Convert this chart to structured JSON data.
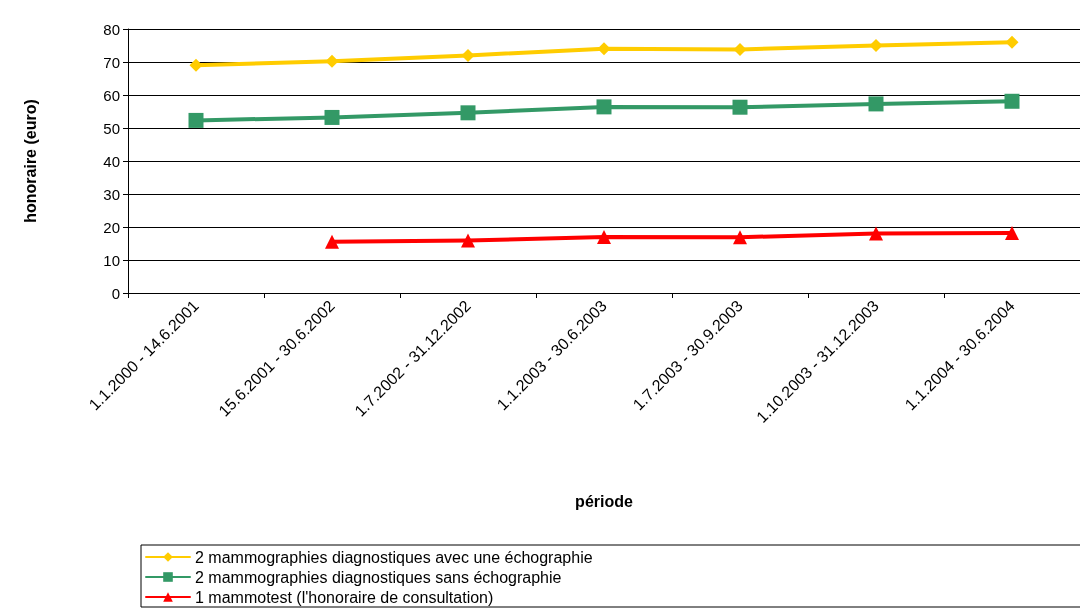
{
  "chart_data": {
    "type": "line",
    "xlabel": "période",
    "ylabel": "honoraire (euro)",
    "categories": [
      "1.1.2000 - 14.6.2001",
      "15.6.2001 - 30.6.2002",
      "1.7.2002 - 31.12.2002",
      "1.1.2003 - 30.6.2003",
      "1.7.2003 - 30.9.2003",
      "1.10.2003 - 31.12.2003",
      "1.1.2004 - 30.6.2004"
    ],
    "series": [
      {
        "name": "2 mammographies diagnostiques avec une échographie",
        "color": "#ffcc00",
        "marker": "diamond",
        "values": [
          69,
          70.2,
          72,
          74,
          73.8,
          75,
          76
        ]
      },
      {
        "name": "2 mammographies diagnostiques sans échographie",
        "color": "#339966",
        "marker": "square",
        "values": [
          52.3,
          53.2,
          54.6,
          56.4,
          56.3,
          57.3,
          58.1
        ]
      },
      {
        "name": "1 mammotest (l'honoraire de consultation)",
        "color": "#ff0000",
        "marker": "triangle",
        "values": [
          null,
          15.5,
          15.9,
          17,
          16.9,
          18,
          18.2
        ]
      }
    ],
    "ylim": [
      0,
      80
    ],
    "yticks": [
      0,
      10,
      20,
      30,
      40,
      50,
      60,
      70,
      80
    ],
    "grid": "y",
    "legend": "bottom"
  }
}
